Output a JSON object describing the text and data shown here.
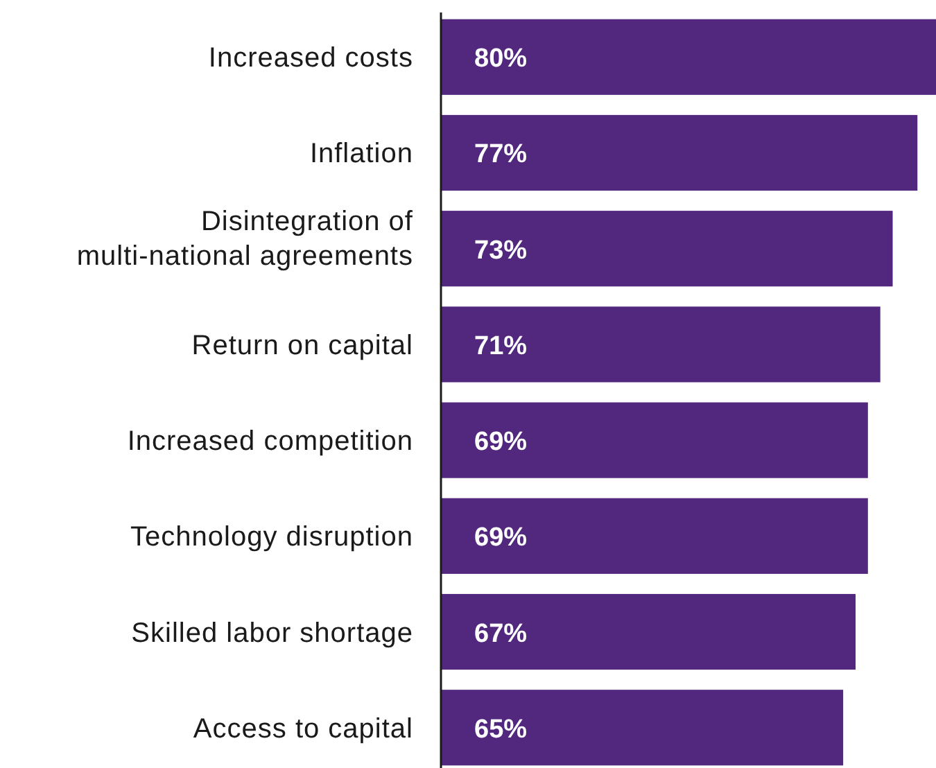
{
  "chart_data": {
    "type": "bar",
    "orientation": "horizontal",
    "categories": [
      "Increased costs",
      "Inflation",
      "Disintegration of multi-national agreements",
      "Return on capital",
      "Increased competition",
      "Technology disruption",
      "Skilled labor shortage",
      "Access to capital"
    ],
    "values": [
      80,
      77,
      73,
      71,
      69,
      69,
      67,
      65
    ],
    "color": "#52287e",
    "value_labels": [
      "80%",
      "77%",
      "73%",
      "71%",
      "69%",
      "69%",
      "67%",
      "65%"
    ],
    "tick_labels": "y"
  }
}
